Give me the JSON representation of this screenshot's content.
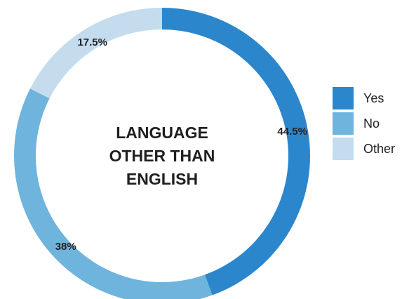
{
  "chart_data": {
    "type": "pie",
    "style": "donut",
    "center_title": [
      "LANGUAGE",
      "OTHER THAN",
      "ENGLISH"
    ],
    "slices": [
      {
        "name": "Yes",
        "value": 44.5,
        "label": "44.5%",
        "color": "#2b86cc"
      },
      {
        "name": "No",
        "value": 38,
        "label": "38%",
        "color": "#6fb4dc"
      },
      {
        "name": "Other",
        "value": 17.5,
        "label": "17.5%",
        "color": "#c4dcee"
      }
    ],
    "legend_position": "right"
  }
}
